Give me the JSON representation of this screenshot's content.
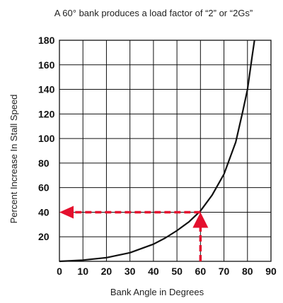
{
  "chart_data": {
    "type": "line",
    "title": "A 60° bank produces a load factor of “2” or “2Gs”",
    "xlabel": "Bank Angle in Degrees",
    "ylabel": "Percent Increase In Stall Speed",
    "xlim": [
      0,
      90
    ],
    "ylim": [
      0,
      180
    ],
    "x_ticks": [
      0,
      10,
      20,
      30,
      40,
      50,
      60,
      70,
      80,
      90
    ],
    "x_tick_labels": [
      "0",
      "10",
      "20",
      "30",
      "40",
      "50",
      "60",
      "70",
      "80",
      "90"
    ],
    "y_ticks": [
      20,
      40,
      60,
      80,
      100,
      120,
      140,
      160,
      180
    ],
    "y_tick_labels": [
      "20",
      "40",
      "60",
      "80",
      "100",
      "120",
      "140",
      "160",
      "180"
    ],
    "grid": true,
    "series": [
      {
        "x": [
          0,
          10,
          20,
          30,
          40,
          45,
          50,
          55,
          60,
          65,
          70,
          75,
          78,
          80,
          82,
          83
        ],
        "y": [
          0,
          1,
          3,
          7,
          14,
          19,
          25,
          32,
          41,
          54,
          71,
          97,
          122,
          140,
          167,
          180
        ]
      }
    ],
    "annotation": {
      "x": 60,
      "y": 40,
      "description": "dashed red arrows from the 60° bank angle up to the curve and across to 40% on the vertical axis"
    },
    "colors": {
      "curve": "#111111",
      "grid": "#111111",
      "annotation": "#e4102e"
    }
  }
}
